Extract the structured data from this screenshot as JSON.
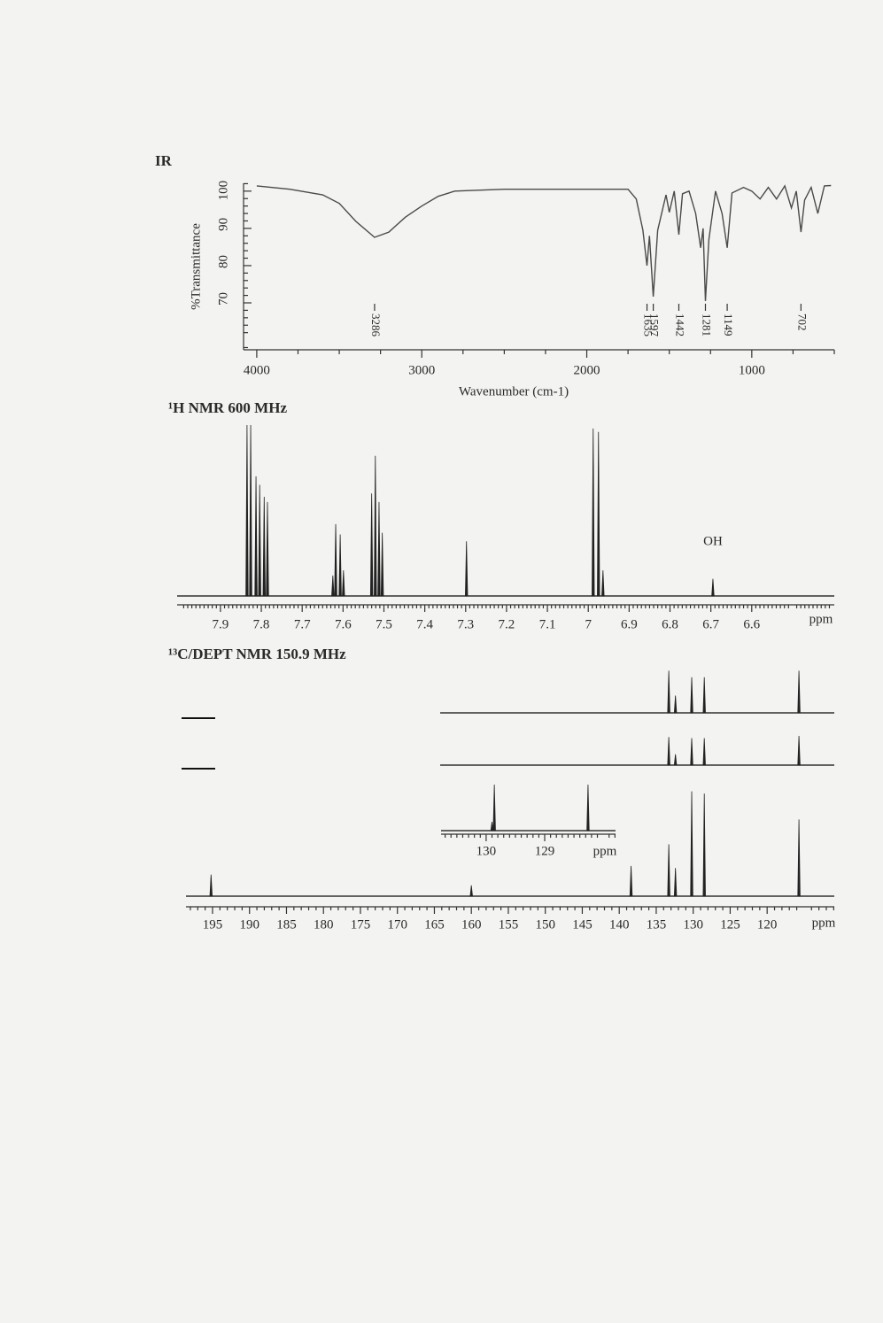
{
  "chart_data": [
    {
      "type": "line",
      "title": "IR",
      "xlabel": "Wavenumber (cm-1)",
      "ylabel": "%Transmittance",
      "x": [
        4000,
        3800,
        3600,
        3500,
        3400,
        3286,
        3200,
        3100,
        3000,
        2900,
        2800,
        2500,
        2000,
        1750,
        1700,
        1660,
        1635,
        1620,
        1597,
        1570,
        1520,
        1500,
        1470,
        1442,
        1420,
        1380,
        1340,
        1310,
        1295,
        1281,
        1260,
        1220,
        1180,
        1149,
        1120,
        1050,
        1000,
        950,
        900,
        850,
        800,
        760,
        730,
        702,
        680,
        640,
        600,
        560,
        520
      ],
      "values": [
        101.4,
        100.5,
        99,
        96.7,
        91.9,
        87.6,
        89,
        93,
        96,
        98.6,
        100,
        100.5,
        100.5,
        100.5,
        97.9,
        89.5,
        80,
        88,
        71.7,
        89.5,
        99,
        94.3,
        100,
        88.3,
        99.3,
        100,
        94,
        84.8,
        90,
        70.5,
        87,
        100,
        94,
        84.8,
        99.5,
        101,
        100,
        97.9,
        101,
        97.9,
        101.4,
        95.5,
        100,
        89,
        97.6,
        101,
        94,
        101.4,
        101.5
      ],
      "color": "#4a4a4a",
      "xlim": [
        4080,
        500
      ],
      "ylim": [
        57.4,
        102.1
      ],
      "xticks": [
        4000,
        3000,
        2000,
        1000
      ],
      "yticks": [
        70,
        80,
        90,
        100
      ],
      "peak_labels": [
        3286,
        1635,
        1597,
        1442,
        1281,
        1149,
        702
      ]
    },
    {
      "type": "spectrum",
      "title": "¹H NMR 600 MHz",
      "xlabel": "ppm",
      "annotation": "OH",
      "x": [
        7.835,
        7.826,
        7.813,
        7.804,
        7.793,
        7.785,
        7.625,
        7.618,
        7.607,
        7.599,
        7.53,
        7.521,
        7.512,
        7.504,
        7.298,
        6.988,
        6.975,
        6.964,
        6.695
      ],
      "values": [
        100,
        100,
        70,
        65,
        58,
        55,
        12,
        42,
        36,
        15,
        60,
        82,
        55,
        37,
        32,
        98,
        96,
        15,
        10
      ],
      "color": "#222222",
      "xlim": [
        8.006,
        6.398
      ],
      "xticks": [
        7.9,
        7.8,
        7.7,
        7.6,
        7.5,
        7.4,
        7.3,
        7.2,
        7.1,
        7.0,
        6.9,
        6.8,
        6.7,
        6.6
      ]
    },
    {
      "type": "spectrum",
      "title": "¹³C/DEPT NMR 150.9 MHz",
      "xlabel": "ppm",
      "x": [
        195.2,
        160.0,
        138.4,
        133.3,
        132.4,
        130.2,
        128.5,
        115.7
      ],
      "series": [
        {
          "values": [
            null,
            null,
            null,
            39,
            16,
            33,
            33,
            39
          ]
        },
        {
          "values": [
            null,
            null,
            null,
            26,
            10,
            25,
            25,
            27
          ]
        },
        {
          "values": [
            20,
            10,
            28,
            48,
            26,
            97,
            95,
            71
          ]
        }
      ],
      "color": "#222222",
      "xlim": [
        198.59,
        110.92
      ],
      "xticks": [
        195,
        190,
        185,
        180,
        175,
        170,
        165,
        160,
        155,
        150,
        145,
        140,
        135,
        130,
        125,
        120
      ]
    },
    {
      "type": "spectrum",
      "xlabel": "ppm",
      "x": [
        129.9,
        129.86,
        128.26
      ],
      "values": [
        10,
        52,
        52
      ],
      "color": "#222222",
      "xlim": [
        130.77,
        127.79
      ],
      "xticks": [
        130,
        129
      ]
    }
  ]
}
